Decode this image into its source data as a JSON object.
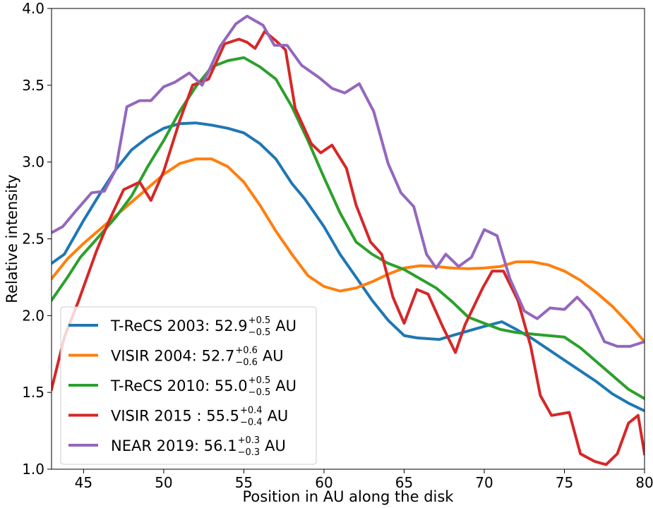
{
  "chart_data": {
    "type": "line",
    "xlabel": "Position in AU along the disk",
    "ylabel": "Relative intensity",
    "xlim": [
      43,
      80
    ],
    "ylim": [
      1.0,
      4.0
    ],
    "xticks": [
      "45",
      "50",
      "55",
      "60",
      "65",
      "70",
      "75",
      "80"
    ],
    "yticks": [
      "1.0",
      "1.5",
      "2.0",
      "2.5",
      "3.0",
      "3.5",
      "4.0"
    ],
    "grid": false,
    "legend_position": "lower-left",
    "series": [
      {
        "name": "T-ReCS 2003: 52.9 AU",
        "legend_main": "T-ReCS 2003: 52.9",
        "legend_sup": "+0.5",
        "legend_sub": "−0.5",
        "legend_unit": "AU",
        "color": "#1f77b4",
        "x": [
          43,
          43.8,
          45,
          46,
          47,
          48,
          49,
          50,
          51,
          52,
          53,
          54,
          55,
          56,
          57,
          58,
          58.8,
          60,
          61,
          62,
          63,
          64,
          65,
          65.8,
          67.2,
          68,
          69,
          70,
          71.1,
          72,
          73,
          74,
          75,
          76,
          77,
          78,
          79,
          80
        ],
        "y": [
          2.34,
          2.4,
          2.62,
          2.79,
          2.95,
          3.08,
          3.16,
          3.22,
          3.25,
          3.255,
          3.24,
          3.22,
          3.19,
          3.12,
          3.02,
          2.86,
          2.76,
          2.58,
          2.4,
          2.25,
          2.1,
          1.97,
          1.87,
          1.855,
          1.845,
          1.87,
          1.9,
          1.93,
          1.96,
          1.91,
          1.85,
          1.78,
          1.71,
          1.64,
          1.57,
          1.49,
          1.43,
          1.38
        ]
      },
      {
        "name": "VISIR 2004: 52.7 AU",
        "legend_main": "VISIR 2004: 52.7",
        "legend_sup": "+0.6",
        "legend_sub": "−0.6",
        "legend_unit": "AU",
        "color": "#ff7f0e",
        "x": [
          43,
          44,
          45,
          46,
          47,
          48,
          49,
          50,
          51,
          52,
          53,
          54,
          55,
          56,
          57,
          58,
          59,
          60,
          61,
          62,
          63,
          64,
          65,
          66,
          67,
          68,
          69,
          70,
          71,
          72,
          73,
          74,
          75,
          76,
          77,
          78,
          79,
          80
        ],
        "y": [
          2.24,
          2.37,
          2.47,
          2.56,
          2.65,
          2.74,
          2.83,
          2.92,
          2.99,
          3.02,
          3.02,
          2.97,
          2.87,
          2.72,
          2.55,
          2.4,
          2.26,
          2.19,
          2.16,
          2.18,
          2.22,
          2.27,
          2.31,
          2.325,
          2.32,
          2.31,
          2.305,
          2.31,
          2.32,
          2.35,
          2.35,
          2.33,
          2.29,
          2.23,
          2.15,
          2.06,
          1.95,
          1.83
        ]
      },
      {
        "name": "T-ReCS 2010: 55.0 AU",
        "legend_main": "T-ReCS 2010: 55.0",
        "legend_sup": "+0.5",
        "legend_sub": "−0.5",
        "legend_unit": "AU",
        "color": "#2ca02c",
        "x": [
          43,
          44,
          44.8,
          46,
          47,
          48,
          49,
          50,
          51,
          52,
          53,
          54,
          55,
          56,
          57,
          58,
          59,
          60,
          61,
          62,
          63,
          64,
          65,
          66,
          67,
          68,
          69,
          70,
          71,
          72,
          73,
          74,
          75,
          76,
          77,
          78,
          79,
          80
        ],
        "y": [
          2.1,
          2.25,
          2.38,
          2.52,
          2.64,
          2.78,
          2.97,
          3.14,
          3.33,
          3.49,
          3.62,
          3.66,
          3.68,
          3.62,
          3.54,
          3.36,
          3.14,
          2.9,
          2.67,
          2.48,
          2.4,
          2.34,
          2.3,
          2.24,
          2.18,
          2.09,
          1.99,
          1.95,
          1.91,
          1.89,
          1.88,
          1.87,
          1.86,
          1.79,
          1.7,
          1.61,
          1.52,
          1.46
        ]
      },
      {
        "name": "VISIR 2015 : 55.5 AU",
        "legend_main": "VISIR 2015 : 55.5",
        "legend_sup": "+0.4",
        "legend_sub": "−0.4",
        "legend_unit": "AU",
        "color": "#d62728",
        "x": [
          43,
          43.8,
          44.7,
          45.8,
          46.6,
          47.5,
          48.5,
          49.2,
          50,
          51,
          51.8,
          52.8,
          53.8,
          54.7,
          55.2,
          55.7,
          56.3,
          57,
          57.6,
          58.2,
          59.2,
          59.8,
          60.5,
          61.4,
          62,
          62.9,
          63.6,
          64.3,
          65,
          65.8,
          66.5,
          67.4,
          68.2,
          68.8,
          69.9,
          70.5,
          71.2,
          72.1,
          72.9,
          73.5,
          74.2,
          75.3,
          76,
          76.9,
          77.6,
          78.3,
          79.0,
          79.6,
          80
        ],
        "y": [
          1.52,
          1.86,
          2.1,
          2.42,
          2.62,
          2.82,
          2.87,
          2.75,
          2.94,
          3.27,
          3.5,
          3.54,
          3.77,
          3.8,
          3.78,
          3.74,
          3.85,
          3.79,
          3.73,
          3.35,
          3.12,
          3.06,
          3.11,
          2.96,
          2.72,
          2.48,
          2.4,
          2.12,
          1.95,
          2.17,
          2.14,
          1.93,
          1.76,
          1.94,
          2.18,
          2.29,
          2.29,
          2.1,
          1.8,
          1.48,
          1.35,
          1.37,
          1.1,
          1.05,
          1.03,
          1.1,
          1.3,
          1.35,
          1.1
        ]
      },
      {
        "name": "NEAR 2019: 56.1 AU",
        "legend_main": "NEAR 2019: 56.1",
        "legend_sup": "+0.3",
        "legend_sub": "−0.3",
        "legend_unit": "AU",
        "color": "#9467bd",
        "x": [
          43,
          43.7,
          44.5,
          45.5,
          46.3,
          47,
          47.7,
          48.5,
          49.2,
          50,
          50.7,
          51.6,
          52.4,
          53.5,
          54.5,
          55.2,
          56.2,
          56.9,
          57.7,
          58.6,
          59.7,
          60.5,
          61.3,
          62.2,
          63.1,
          64,
          64.8,
          65.6,
          66.4,
          67,
          67.6,
          68.4,
          69.2,
          70,
          70.8,
          71.6,
          72.5,
          73.3,
          74.1,
          75,
          75.8,
          76.6,
          77.5,
          78.3,
          79.1,
          80
        ],
        "y": [
          2.54,
          2.58,
          2.68,
          2.8,
          2.81,
          2.95,
          3.36,
          3.4,
          3.4,
          3.49,
          3.52,
          3.58,
          3.5,
          3.75,
          3.9,
          3.95,
          3.89,
          3.76,
          3.76,
          3.63,
          3.55,
          3.48,
          3.45,
          3.51,
          3.33,
          2.99,
          2.8,
          2.71,
          2.4,
          2.31,
          2.4,
          2.32,
          2.38,
          2.56,
          2.52,
          2.24,
          2.03,
          1.98,
          2.05,
          2.04,
          2.12,
          2.03,
          1.83,
          1.8,
          1.8,
          1.83
        ]
      }
    ]
  }
}
